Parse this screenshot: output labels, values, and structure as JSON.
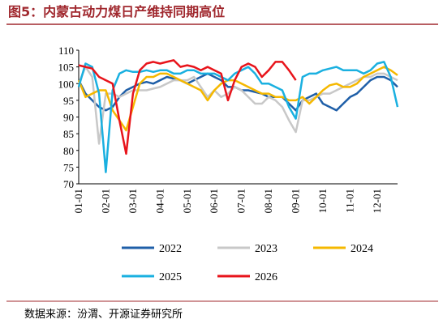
{
  "chart_data": {
    "type": "line",
    "title": "图5：内蒙古动力煤日产维持同期高位",
    "source": "数据来源：汾渭、开源证券研究所",
    "categories": [
      "01-01",
      null,
      null,
      null,
      "02-01",
      null,
      null,
      null,
      "03-01",
      null,
      null,
      null,
      "04-01",
      null,
      null,
      null,
      "05-01",
      null,
      null,
      null,
      "06-01",
      null,
      null,
      null,
      "07-01",
      null,
      null,
      null,
      "08-01",
      null,
      null,
      null,
      "09-01",
      null,
      null,
      null,
      "10-01",
      null,
      null,
      null,
      "11-01",
      null,
      null,
      null,
      "12-01",
      null,
      null,
      null
    ],
    "ylim": [
      70,
      110
    ],
    "yticks": [
      70,
      75,
      80,
      85,
      90,
      95,
      100,
      105,
      110
    ],
    "series": [
      {
        "name": "2022",
        "color": "#1f5fa8",
        "values": [
          101,
          97,
          95,
          93,
          92,
          93,
          96,
          98,
          99,
          100,
          100.5,
          100,
          101,
          102,
          101.5,
          101,
          100,
          101,
          102,
          103,
          102,
          101,
          99,
          99,
          98,
          98,
          97.5,
          97,
          96,
          96,
          96,
          94,
          92,
          95,
          96,
          97,
          94,
          93,
          92,
          94,
          96,
          97,
          99,
          101,
          102,
          102,
          101,
          99
        ]
      },
      {
        "name": "2023",
        "color": "#c8c8c8",
        "values": [
          100,
          105,
          102,
          82,
          97,
          97,
          96,
          97,
          98,
          98,
          98,
          98.5,
          99,
          100,
          101,
          101,
          101,
          102,
          99,
          96,
          98,
          96,
          97,
          99,
          98,
          96,
          94,
          94,
          96,
          95,
          93,
          89,
          85.5,
          95,
          95,
          96,
          97,
          97,
          98,
          99,
          100,
          101,
          102,
          102,
          103,
          103,
          102,
          101
        ]
      },
      {
        "name": "2024",
        "color": "#f5b800",
        "values": [
          101,
          96,
          97,
          98,
          98,
          92,
          89,
          86,
          93,
          100,
          102,
          102,
          103,
          103,
          102,
          101,
          100,
          99,
          98,
          95,
          98,
          100,
          101,
          101,
          100,
          99,
          98,
          97,
          97,
          96,
          96,
          95,
          95,
          96,
          94,
          96,
          98,
          99.5,
          100,
          99,
          99,
          100,
          102,
          103,
          104,
          105,
          104,
          102.5
        ]
      },
      {
        "name": "2025",
        "color": "#1ab0e0",
        "values": [
          99,
          106,
          105,
          97,
          73.5,
          98,
          103,
          104,
          103.5,
          103.5,
          104,
          103.5,
          104,
          104,
          103,
          103,
          104,
          104,
          103,
          103,
          103,
          102,
          101,
          103,
          104,
          105,
          103,
          100,
          100,
          99,
          98,
          93,
          89.5,
          102,
          103,
          103,
          104,
          104.5,
          105,
          104,
          104,
          104,
          103,
          104,
          106,
          106.5,
          102,
          93
        ]
      },
      {
        "name": "2026",
        "color": "#e8141b",
        "values": [
          105.5,
          105,
          104.5,
          102,
          101,
          100,
          89,
          79,
          97,
          104,
          106,
          106.5,
          106,
          106.5,
          107,
          105,
          105.5,
          105,
          104,
          105,
          104,
          103,
          95,
          101,
          105,
          106,
          105,
          102,
          104,
          106.5,
          106.5,
          104,
          101,
          null,
          null,
          null,
          null,
          null,
          null,
          null,
          null,
          null,
          null,
          null,
          null,
          null,
          null,
          null
        ]
      }
    ]
  }
}
